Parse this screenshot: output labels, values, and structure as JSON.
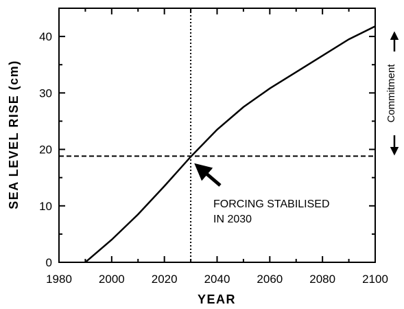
{
  "chart_data": {
    "type": "line",
    "title": "",
    "xlabel": "YEAR",
    "ylabel": "SEA LEVEL RISE (cm)",
    "xlim": [
      1980,
      2100
    ],
    "ylim": [
      0,
      45
    ],
    "xticks": [
      1980,
      2000,
      2020,
      2040,
      2060,
      2080,
      2100
    ],
    "yticks": [
      0,
      10,
      20,
      30,
      40
    ],
    "grid": false,
    "series": [
      {
        "x": [
          1990,
          2000,
          2010,
          2020,
          2030,
          2040,
          2050,
          2060,
          2070,
          2080,
          2090,
          2100
        ],
        "y": [
          0,
          4,
          8.5,
          13.5,
          18.7,
          23.5,
          27.5,
          30.8,
          33.7,
          36.6,
          39.5,
          41.8
        ]
      }
    ],
    "reference_lines": {
      "vertical_x": 2030,
      "horizontal_y": 18.8
    },
    "annotations": {
      "forcing_line1": "FORCING STABILISED",
      "forcing_line2": "IN 2030",
      "commitment": "Commitment"
    }
  }
}
